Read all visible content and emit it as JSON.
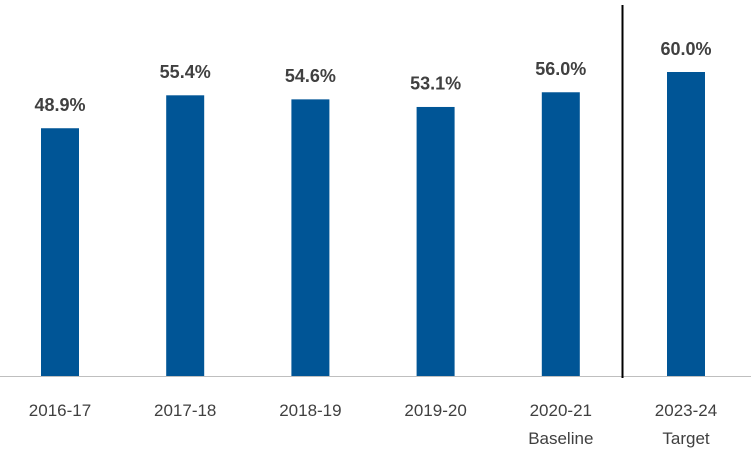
{
  "chart_data": {
    "type": "bar",
    "categories": [
      "2016-17",
      "2017-18",
      "2018-19",
      "2019-20",
      "2020-21\nBaseline",
      "2023-24\nTarget"
    ],
    "values": [
      48.9,
      55.4,
      54.6,
      53.1,
      56.0,
      60.0
    ],
    "value_labels": [
      "48.9%",
      "55.4%",
      "54.6%",
      "53.1%",
      "56.0%",
      "60.0%"
    ],
    "color": "#005596"
  }
}
